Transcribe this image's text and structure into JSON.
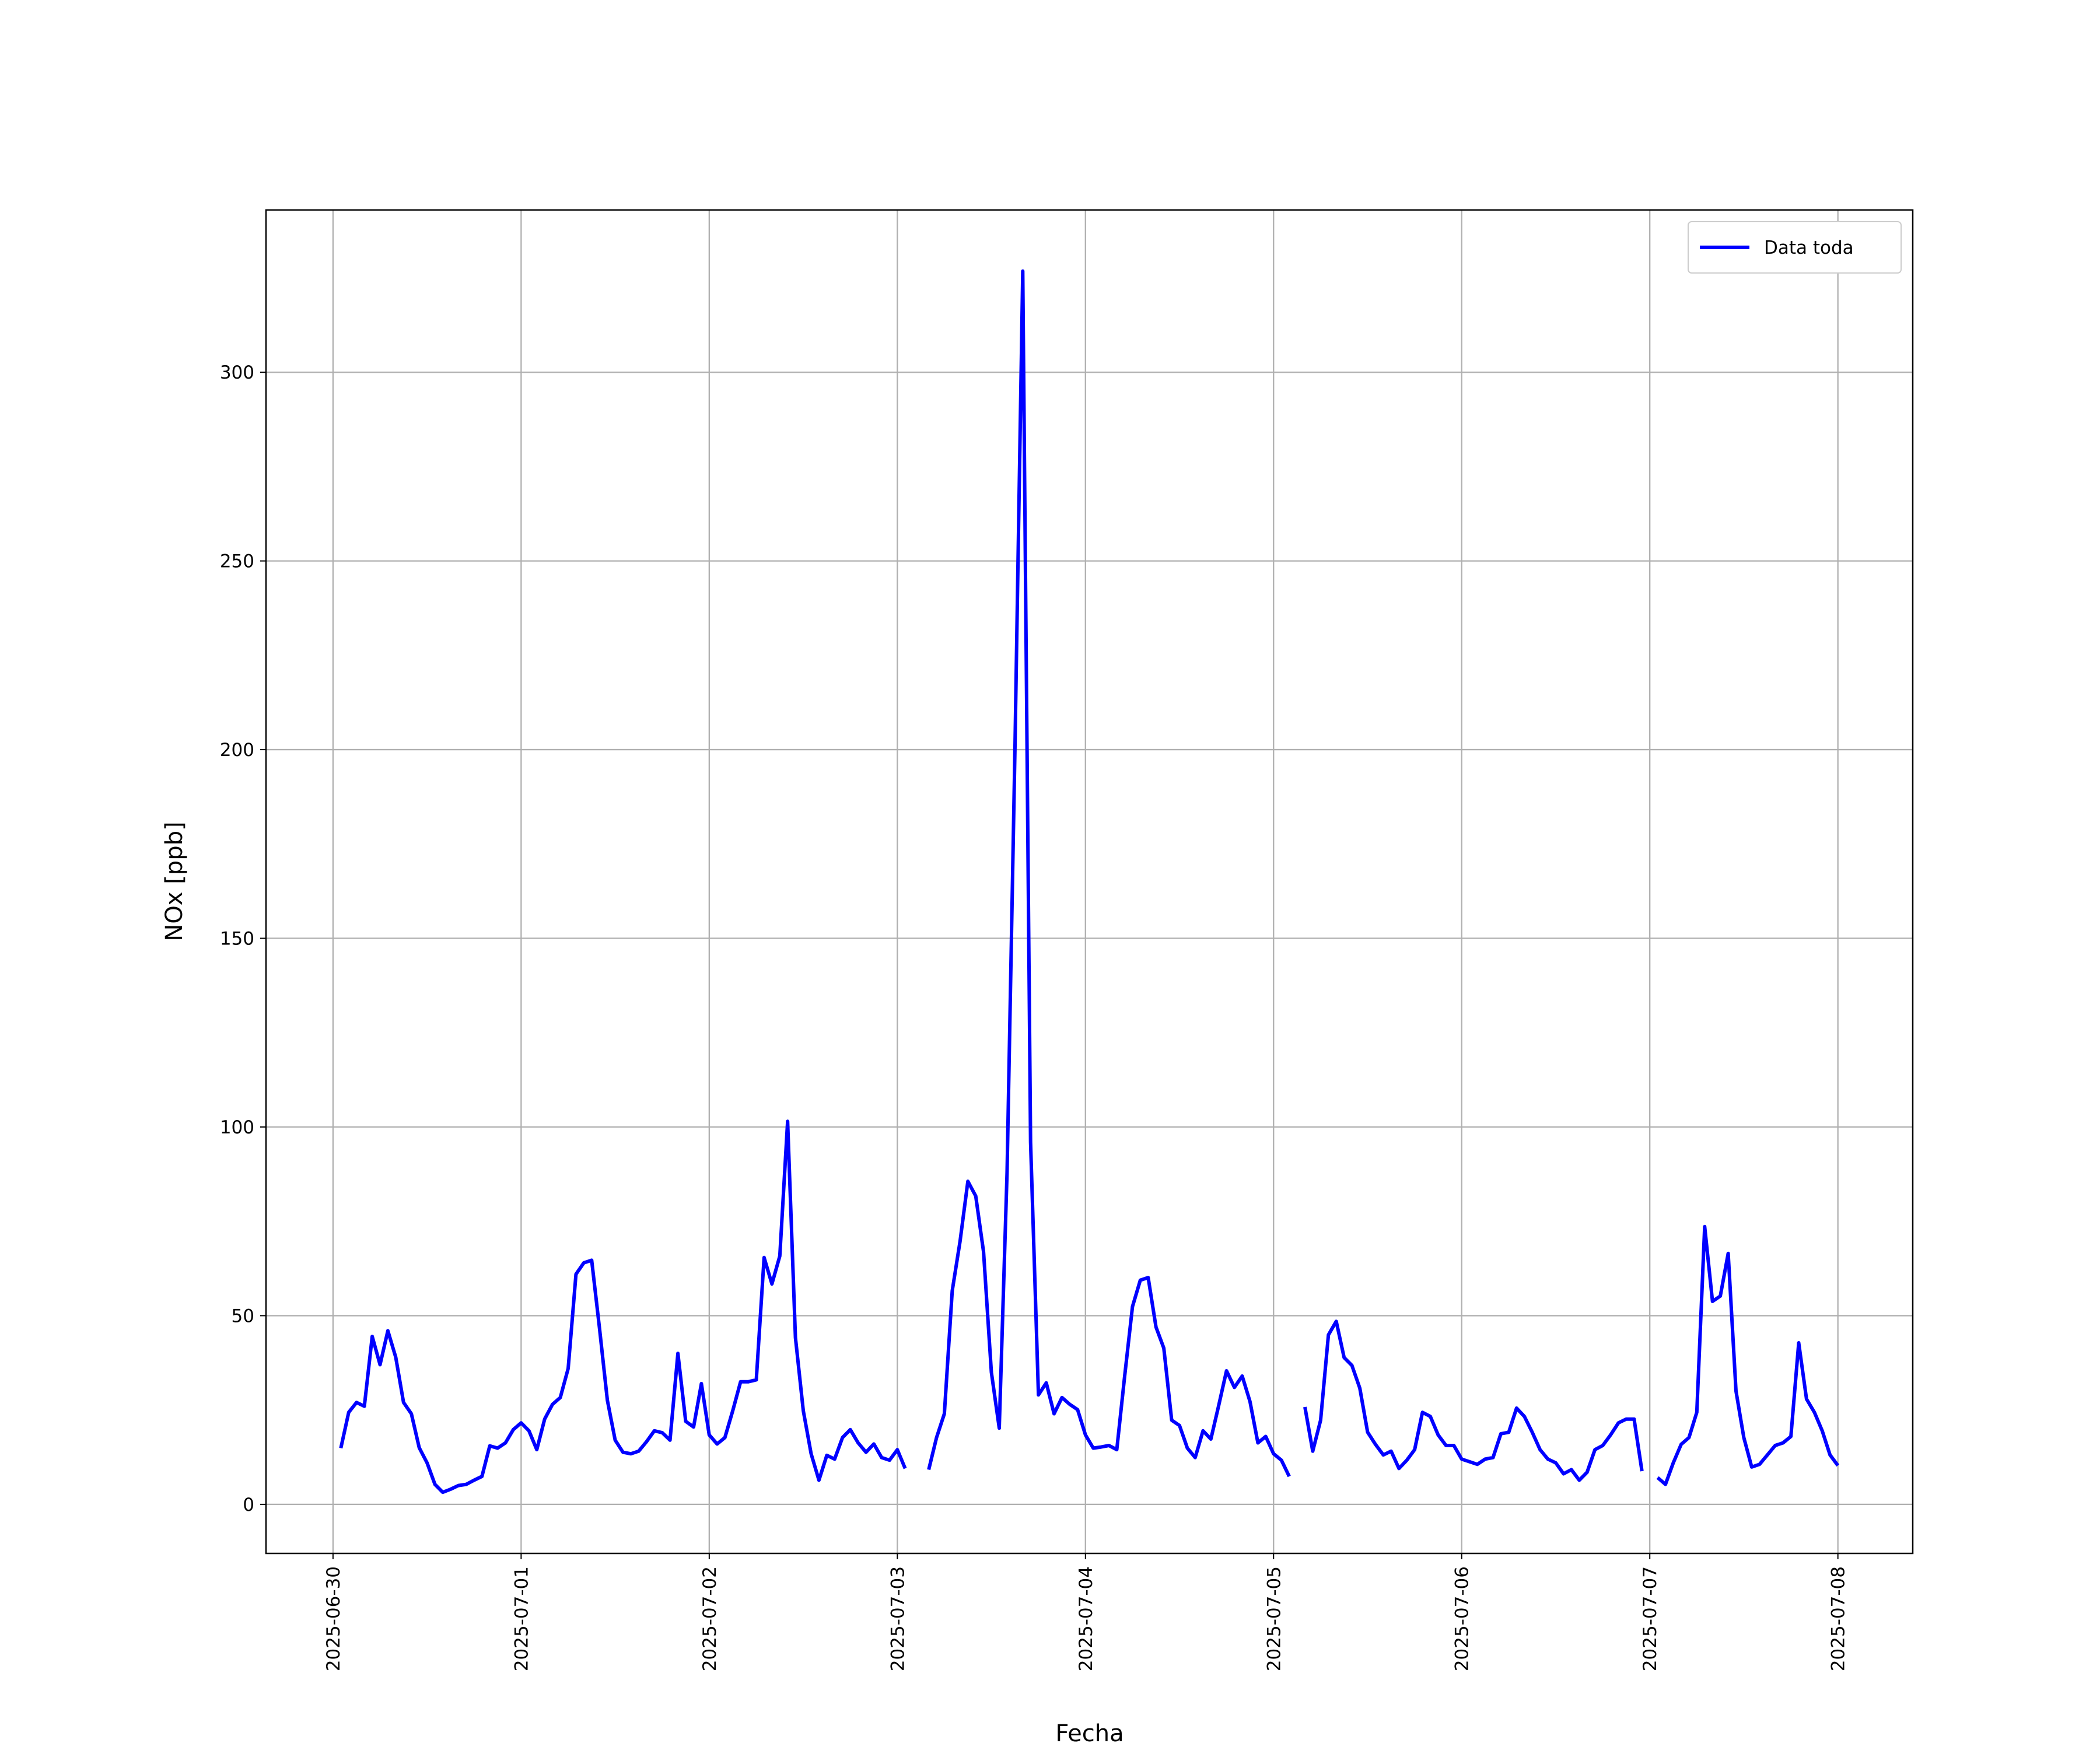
{
  "chart_data": {
    "type": "line",
    "x_label": "Fecha",
    "y_label": "NOx [ppb]",
    "x": [
      "2025-06-30T01:00",
      "2025-06-30T02:00",
      "2025-06-30T03:00",
      "2025-06-30T04:00",
      "2025-06-30T05:00",
      "2025-06-30T06:00",
      "2025-06-30T07:00",
      "2025-06-30T08:00",
      "2025-06-30T09:00",
      "2025-06-30T10:00",
      "2025-06-30T11:00",
      "2025-06-30T12:00",
      "2025-06-30T13:00",
      "2025-06-30T14:00",
      "2025-06-30T15:00",
      "2025-06-30T16:00",
      "2025-06-30T17:00",
      "2025-06-30T18:00",
      "2025-06-30T19:00",
      "2025-06-30T20:00",
      "2025-06-30T21:00",
      "2025-06-30T22:00",
      "2025-06-30T23:00",
      "2025-07-01T00:00",
      "2025-07-01T01:00",
      "2025-07-01T02:00",
      "2025-07-01T03:00",
      "2025-07-01T04:00",
      "2025-07-01T05:00",
      "2025-07-01T06:00",
      "2025-07-01T07:00",
      "2025-07-01T08:00",
      "2025-07-01T09:00",
      "2025-07-01T10:00",
      "2025-07-01T11:00",
      "2025-07-01T12:00",
      "2025-07-01T13:00",
      "2025-07-01T14:00",
      "2025-07-01T15:00",
      "2025-07-01T16:00",
      "2025-07-01T17:00",
      "2025-07-01T18:00",
      "2025-07-01T19:00",
      "2025-07-01T20:00",
      "2025-07-01T21:00",
      "2025-07-01T22:00",
      "2025-07-01T23:00",
      "2025-07-02T00:00",
      "2025-07-02T01:00",
      "2025-07-02T02:00",
      "2025-07-02T03:00",
      "2025-07-02T04:00",
      "2025-07-02T05:00",
      "2025-07-02T06:00",
      "2025-07-02T07:00",
      "2025-07-02T08:00",
      "2025-07-02T09:00",
      "2025-07-02T10:00",
      "2025-07-02T11:00",
      "2025-07-02T12:00",
      "2025-07-02T13:00",
      "2025-07-02T14:00",
      "2025-07-02T15:00",
      "2025-07-02T16:00",
      "2025-07-02T17:00",
      "2025-07-02T18:00",
      "2025-07-02T19:00",
      "2025-07-02T20:00",
      "2025-07-02T21:00",
      "2025-07-02T22:00",
      "2025-07-02T23:00",
      "2025-07-03T00:00",
      "2025-07-03T01:00",
      "2025-07-03T02:00",
      "2025-07-03T03:00",
      "2025-07-03T04:00",
      "2025-07-03T05:00",
      "2025-07-03T06:00",
      "2025-07-03T07:00",
      "2025-07-03T08:00",
      "2025-07-03T09:00",
      "2025-07-03T10:00",
      "2025-07-03T11:00",
      "2025-07-03T12:00",
      "2025-07-03T13:00",
      "2025-07-03T14:00",
      "2025-07-03T15:00",
      "2025-07-03T16:00",
      "2025-07-03T17:00",
      "2025-07-03T18:00",
      "2025-07-03T19:00",
      "2025-07-03T20:00",
      "2025-07-03T21:00",
      "2025-07-03T22:00",
      "2025-07-03T23:00",
      "2025-07-04T00:00",
      "2025-07-04T01:00",
      "2025-07-04T02:00",
      "2025-07-04T03:00",
      "2025-07-04T04:00",
      "2025-07-04T05:00",
      "2025-07-04T06:00",
      "2025-07-04T07:00",
      "2025-07-04T08:00",
      "2025-07-04T09:00",
      "2025-07-04T10:00",
      "2025-07-04T11:00",
      "2025-07-04T12:00",
      "2025-07-04T13:00",
      "2025-07-04T14:00",
      "2025-07-04T15:00",
      "2025-07-04T16:00",
      "2025-07-04T17:00",
      "2025-07-04T18:00",
      "2025-07-04T19:00",
      "2025-07-04T20:00",
      "2025-07-04T21:00",
      "2025-07-04T22:00",
      "2025-07-04T23:00",
      "2025-07-05T00:00",
      "2025-07-05T01:00",
      "2025-07-05T02:00",
      "2025-07-05T03:00",
      "2025-07-05T04:00",
      "2025-07-05T05:00",
      "2025-07-05T06:00",
      "2025-07-05T07:00",
      "2025-07-05T08:00",
      "2025-07-05T09:00",
      "2025-07-05T10:00",
      "2025-07-05T11:00",
      "2025-07-05T12:00",
      "2025-07-05T13:00",
      "2025-07-05T14:00",
      "2025-07-05T15:00",
      "2025-07-05T16:00",
      "2025-07-05T17:00",
      "2025-07-05T18:00",
      "2025-07-05T19:00",
      "2025-07-05T20:00",
      "2025-07-05T21:00",
      "2025-07-05T22:00",
      "2025-07-05T23:00",
      "2025-07-06T00:00",
      "2025-07-06T01:00",
      "2025-07-06T02:00",
      "2025-07-06T03:00",
      "2025-07-06T04:00",
      "2025-07-06T05:00",
      "2025-07-06T06:00",
      "2025-07-06T07:00",
      "2025-07-06T08:00",
      "2025-07-06T09:00",
      "2025-07-06T10:00",
      "2025-07-06T11:00",
      "2025-07-06T12:00",
      "2025-07-06T13:00",
      "2025-07-06T14:00",
      "2025-07-06T15:00",
      "2025-07-06T16:00",
      "2025-07-06T17:00",
      "2025-07-06T18:00",
      "2025-07-06T19:00",
      "2025-07-06T20:00",
      "2025-07-06T21:00",
      "2025-07-06T22:00",
      "2025-07-06T23:00",
      "2025-07-07T00:00",
      "2025-07-07T01:00",
      "2025-07-07T02:00",
      "2025-07-07T03:00",
      "2025-07-07T04:00",
      "2025-07-07T05:00",
      "2025-07-07T06:00",
      "2025-07-07T07:00",
      "2025-07-07T08:00",
      "2025-07-07T09:00",
      "2025-07-07T10:00",
      "2025-07-07T11:00",
      "2025-07-07T12:00",
      "2025-07-07T13:00",
      "2025-07-07T14:00",
      "2025-07-07T15:00",
      "2025-07-07T16:00",
      "2025-07-07T17:00",
      "2025-07-07T18:00",
      "2025-07-07T19:00",
      "2025-07-07T20:00",
      "2025-07-07T21:00",
      "2025-07-07T22:00",
      "2025-07-07T23:00",
      "2025-07-08T00:00"
    ],
    "series": [
      {
        "name": "Data toda",
        "color": "#0000ff",
        "values": [
          14.9,
          24.4,
          27,
          26,
          44.5,
          37,
          46,
          39,
          27,
          24,
          15,
          11,
          5.3,
          3.2,
          4,
          5,
          5.3,
          6.4,
          7.4,
          15.5,
          14.9,
          16.3,
          19.8,
          21.6,
          19.5,
          14.5,
          22.6,
          26.5,
          28.3,
          36,
          61,
          64,
          64.7,
          46.7,
          27.6,
          17,
          13.8,
          13.4,
          14.1,
          16.6,
          19.5,
          19,
          17,
          40,
          22,
          20.5,
          32,
          18.4,
          16,
          17.7,
          24.8,
          32.5,
          32.5,
          33,
          65.4,
          58.4,
          65.8,
          101.5,
          44.2,
          24.8,
          13.4,
          6.4,
          13,
          12,
          17.7,
          19.8,
          16.3,
          13.8,
          16,
          12.4,
          11.7,
          14.5,
          9.5,
          null,
          null,
          9.2,
          17.7,
          24,
          56.6,
          69.7,
          85.6,
          81.7,
          66.9,
          35,
          20.2,
          88,
          200,
          326.8,
          96,
          29,
          32.2,
          24,
          28.3,
          26.5,
          25.1,
          18.4,
          14.9,
          15.2,
          15.6,
          14.5,
          34,
          52.4,
          59.4,
          60.1,
          47,
          41.4,
          22.3,
          20.9,
          14.9,
          12.4,
          19.5,
          17.3,
          26.2,
          35.4,
          31,
          34,
          27.2,
          16.3,
          18,
          13.4,
          11.7,
          7.4,
          null,
          25.8,
          14.1,
          22.3,
          44.9,
          48.5,
          38.9,
          36.8,
          30.8,
          19.1,
          15.9,
          13.1,
          14.1,
          9.5,
          11.7,
          14.5,
          24.4,
          23.3,
          18.4,
          15.6,
          15.6,
          12,
          11.3,
          10.6,
          12,
          12.4,
          18.7,
          19.1,
          25.5,
          23.3,
          19.1,
          14.5,
          12,
          11,
          8.1,
          9.2,
          6.4,
          8.5,
          14.5,
          15.6,
          18.4,
          21.6,
          22.6,
          22.6,
          8.8,
          null,
          7.1,
          5.3,
          11,
          15.9,
          17.7,
          24.4,
          73.6,
          53.8,
          55.2,
          66.5,
          30,
          17.7,
          9.9,
          10.6,
          13.1,
          15.6,
          16.3,
          18,
          42.8,
          27.9,
          24.4,
          19.5,
          13.1,
          10.3
        ]
      }
    ],
    "xlim": [
      "2025-06-29T15:27",
      "2025-07-08T09:33"
    ],
    "xticks": [
      "2025-06-30",
      "2025-07-01",
      "2025-07-02",
      "2025-07-03",
      "2025-07-04",
      "2025-07-05",
      "2025-07-06",
      "2025-07-07",
      "2025-07-08"
    ],
    "ylim": [
      -13,
      343
    ],
    "yticks": [
      0,
      50,
      100,
      150,
      200,
      250,
      300
    ],
    "grid": true,
    "legend": "upper right"
  }
}
